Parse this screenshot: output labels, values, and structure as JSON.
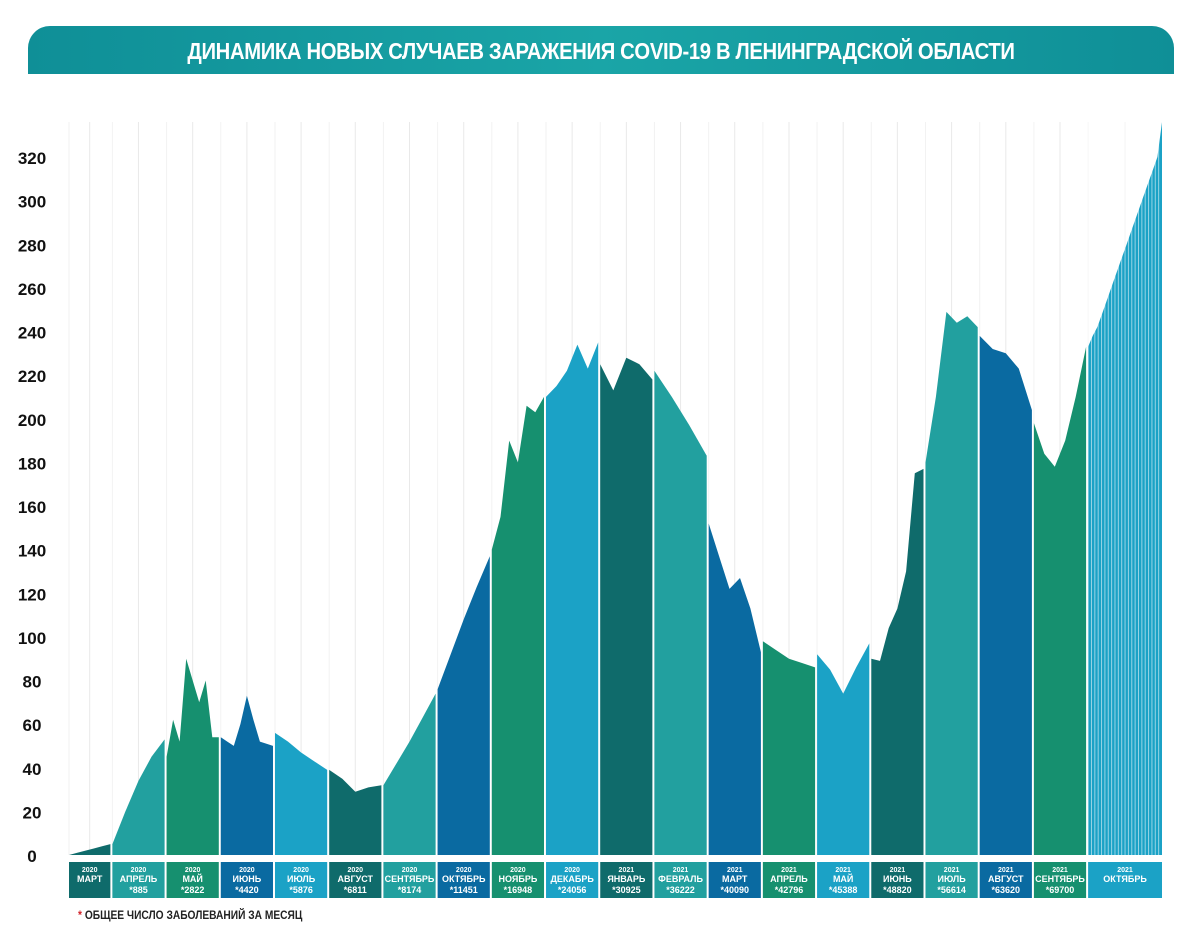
{
  "title": "ДИНАМИКА НОВЫХ СЛУЧАЕВ ЗАРАЖЕНИЯ COVID-19 В ЛЕНИНГРАДСКОЙ ОБЛАСТИ",
  "footnote": {
    "star": "*",
    "text": "ОБЩЕЕ ЧИСЛО ЗАБОЛЕВАНИЙ ЗА МЕСЯЦ"
  },
  "colors": {
    "teal": "#22a09f",
    "green": "#16906f",
    "blue": "#0a6aa1",
    "cyan": "#1ba2c6",
    "dark_teal": "#0f6b6b",
    "label_text": "#ffffff",
    "axis_text": "#111111"
  },
  "chart_data": {
    "type": "area",
    "title": "ДИНАМИКА НОВЫХ СЛУЧАЕВ ЗАРАЖЕНИЯ COVID-19 В ЛЕНИНГРАДСКОЙ ОБЛАСТИ",
    "ylim": [
      0,
      340
    ],
    "yticks": [
      0,
      20,
      40,
      60,
      80,
      100,
      120,
      140,
      160,
      180,
      200,
      220,
      240,
      260,
      280,
      300,
      320
    ],
    "grid": "vertical",
    "months": [
      {
        "year": "2020",
        "month": "МАРТ",
        "total": "",
        "color": "dark_teal",
        "values": [
          0,
          1,
          2,
          3,
          4,
          5
        ]
      },
      {
        "year": "2020",
        "month": "АПРЕЛЬ",
        "total": "*885",
        "color": "teal",
        "values": [
          5,
          20,
          34,
          45,
          53
        ]
      },
      {
        "year": "2020",
        "month": "МАЙ",
        "total": "*2822",
        "color": "green",
        "values": [
          45,
          62,
          52,
          90,
          80,
          70,
          80,
          54,
          54
        ]
      },
      {
        "year": "2020",
        "month": "ИЮНЬ",
        "total": "*4420",
        "color": "blue",
        "values": [
          54,
          52,
          50,
          60,
          73,
          62,
          52,
          51,
          50
        ]
      },
      {
        "year": "2020",
        "month": "ИЮЛЬ",
        "total": "*5876",
        "color": "cyan",
        "values": [
          56,
          52,
          47,
          43,
          39
        ]
      },
      {
        "year": "2020",
        "month": "АВГУСТ",
        "total": "*6811",
        "color": "dark_teal",
        "values": [
          39,
          35,
          29,
          31,
          32
        ]
      },
      {
        "year": "2020",
        "month": "СЕНТЯБРЬ",
        "total": "*8174",
        "color": "teal",
        "values": [
          32,
          42,
          52,
          63,
          74
        ]
      },
      {
        "year": "2020",
        "month": "ОКТЯБРЬ",
        "total": "*11451",
        "color": "blue",
        "values": [
          76,
          92,
          108,
          123,
          137
        ]
      },
      {
        "year": "2020",
        "month": "НОЯБРЬ",
        "total": "*16948",
        "color": "green",
        "values": [
          140,
          155,
          190,
          180,
          206,
          203,
          210
        ]
      },
      {
        "year": "2020",
        "month": "ДЕКАБРЬ",
        "total": "*24056",
        "color": "cyan",
        "values": [
          210,
          215,
          222,
          234,
          223,
          235
        ]
      },
      {
        "year": "2021",
        "month": "ЯНВАРЬ",
        "total": "*30925",
        "color": "dark_teal",
        "values": [
          225,
          213,
          228,
          225,
          218
        ]
      },
      {
        "year": "2021",
        "month": "ФЕВРАЛЬ",
        "total": "*36222",
        "color": "teal",
        "values": [
          222,
          210,
          197,
          183
        ]
      },
      {
        "year": "2021",
        "month": "МАРТ",
        "total": "*40090",
        "color": "blue",
        "values": [
          152,
          137,
          122,
          127,
          113,
          93
        ]
      },
      {
        "year": "2021",
        "month": "АПРЕЛЬ",
        "total": "*42796",
        "color": "green",
        "values": [
          98,
          94,
          90,
          88,
          86
        ]
      },
      {
        "year": "2021",
        "month": "МАЙ",
        "total": "*45388",
        "color": "cyan",
        "values": [
          92,
          85,
          74,
          86,
          97
        ]
      },
      {
        "year": "2021",
        "month": "ИЮНЬ",
        "total": "*48820",
        "color": "dark_teal",
        "values": [
          90,
          89,
          104,
          113,
          130,
          175,
          177
        ]
      },
      {
        "year": "2021",
        "month": "ИЮЛЬ",
        "total": "*56614",
        "color": "teal",
        "values": [
          180,
          210,
          249,
          244,
          247,
          242
        ]
      },
      {
        "year": "2021",
        "month": "АВГУСТ",
        "total": "*63620",
        "color": "blue",
        "values": [
          238,
          232,
          230,
          223,
          204
        ]
      },
      {
        "year": "2021",
        "month": "СЕНТЯБРЬ",
        "total": "*69700",
        "color": "green",
        "values": [
          198,
          184,
          178,
          190,
          210,
          233
        ]
      },
      {
        "year": "2021",
        "month": "ОКТЯБРЬ",
        "total": "",
        "color": "cyan",
        "values": [
          233,
          238,
          242,
          248,
          254,
          260,
          266,
          272,
          278,
          284,
          290,
          296,
          302,
          308,
          314,
          320,
          336
        ]
      }
    ]
  }
}
